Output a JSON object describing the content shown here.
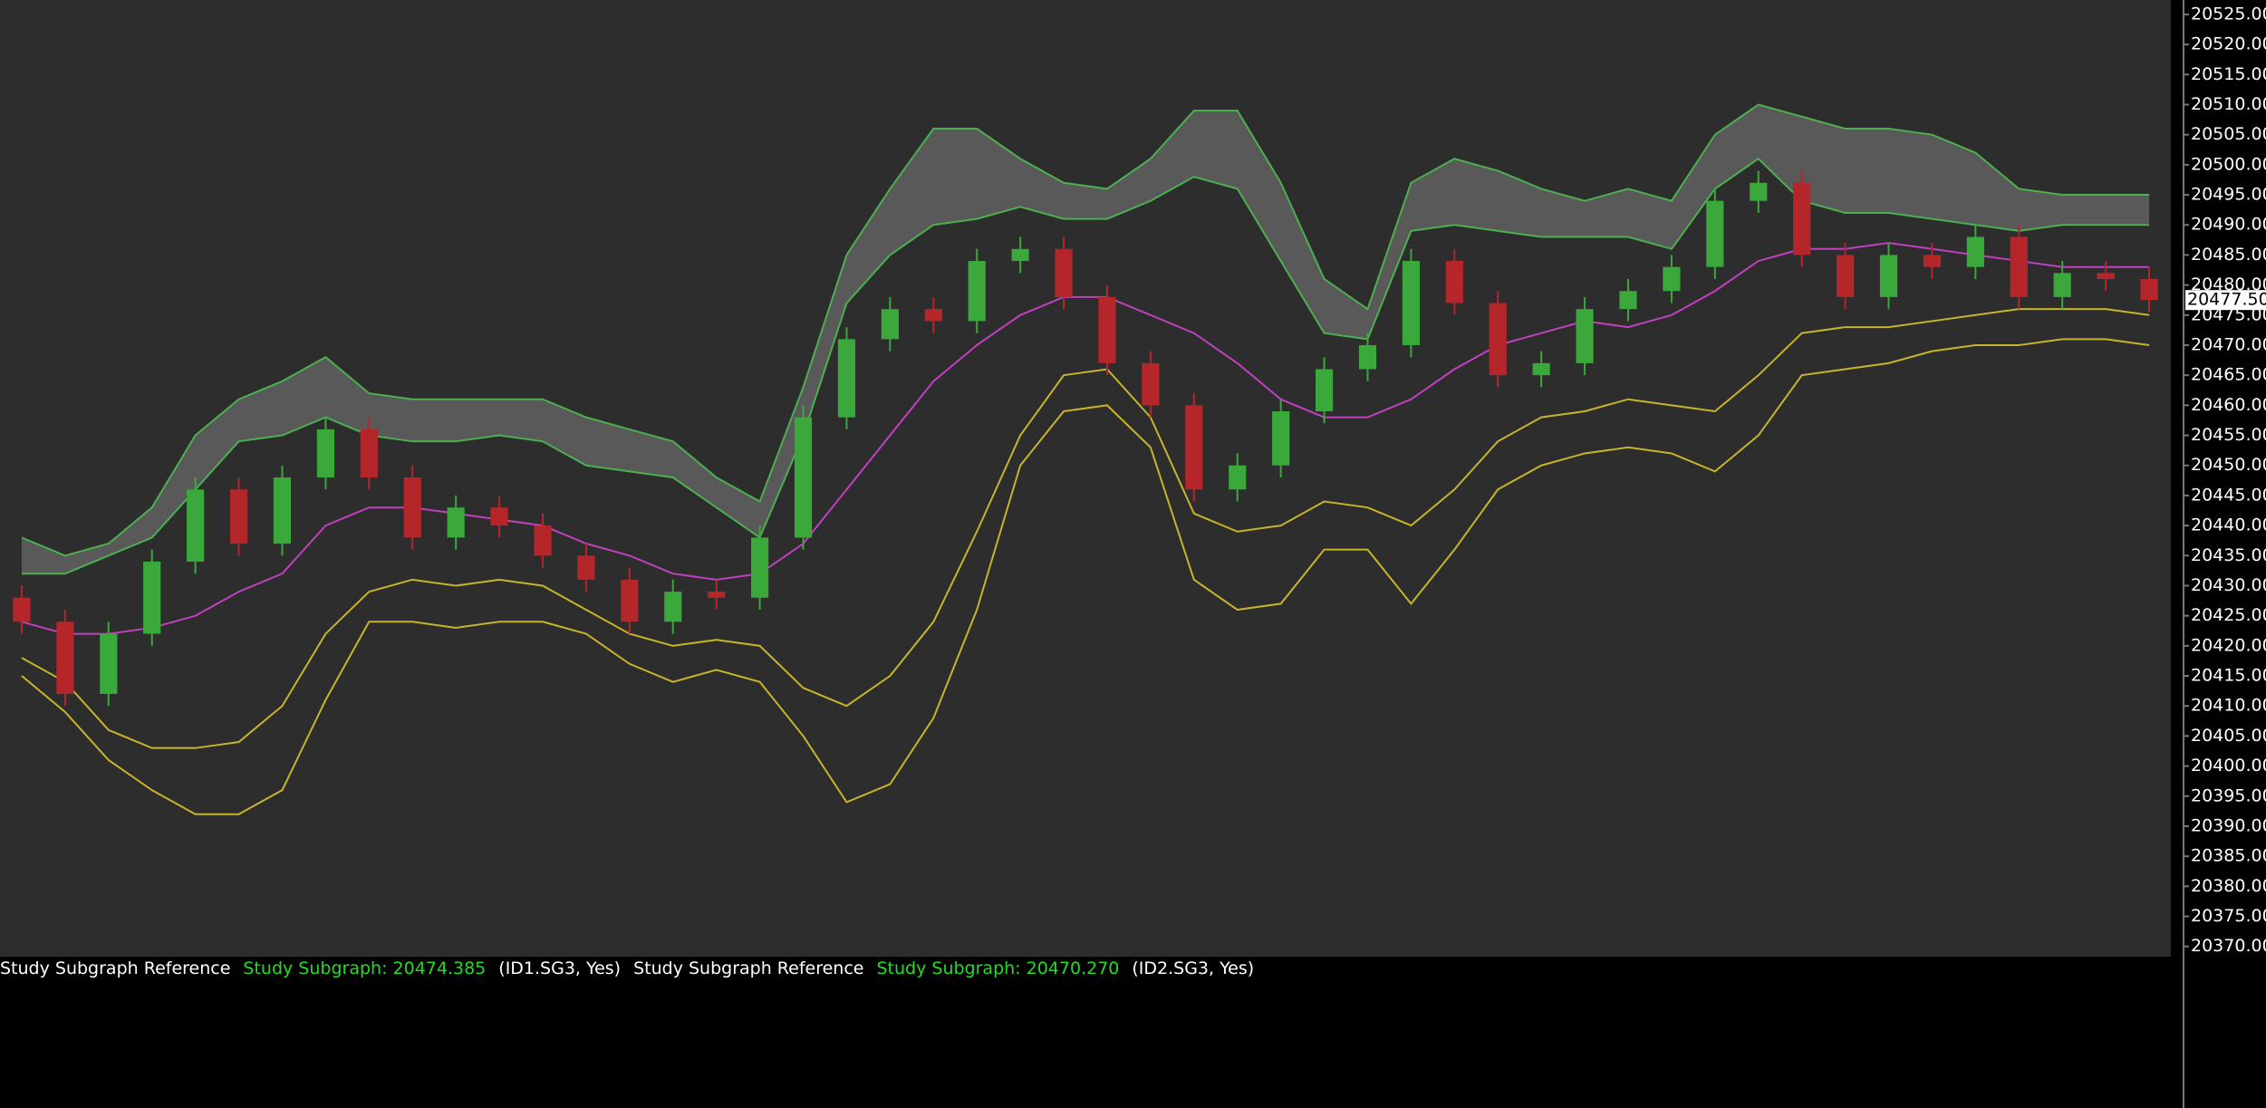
{
  "chart_data": {
    "type": "candlestick",
    "up_color": "#3aa83a",
    "down_color": "#b5262b",
    "plot_background": "#2d2d2d",
    "ylim": [
      20368.3,
      20527.4
    ],
    "yticks": [
      {
        "value": 20370,
        "label": "20370.00"
      },
      {
        "value": 20375,
        "label": "20375.00"
      },
      {
        "value": 20380,
        "label": "20380.00"
      },
      {
        "value": 20385,
        "label": "20385.00"
      },
      {
        "value": 20390,
        "label": "20390.00"
      },
      {
        "value": 20395,
        "label": "20395.00"
      },
      {
        "value": 20400,
        "label": "20400.00"
      },
      {
        "value": 20405,
        "label": "20405.00"
      },
      {
        "value": 20410,
        "label": "20410.00"
      },
      {
        "value": 20415,
        "label": "20415.00"
      },
      {
        "value": 20420,
        "label": "20420.00"
      },
      {
        "value": 20425,
        "label": "20425.00"
      },
      {
        "value": 20430,
        "label": "20430.00"
      },
      {
        "value": 20435,
        "label": "20435.00"
      },
      {
        "value": 20440,
        "label": "20440.00"
      },
      {
        "value": 20445,
        "label": "20445.00"
      },
      {
        "value": 20450,
        "label": "20450.00"
      },
      {
        "value": 20455,
        "label": "20455.00"
      },
      {
        "value": 20460,
        "label": "20460.00"
      },
      {
        "value": 20465,
        "label": "20465.00"
      },
      {
        "value": 20470,
        "label": "20470.00"
      },
      {
        "value": 20475,
        "label": "20475.00"
      },
      {
        "value": 20480,
        "label": "20480.00"
      },
      {
        "value": 20485,
        "label": "20485.00"
      },
      {
        "value": 20490,
        "label": "20490.00"
      },
      {
        "value": 20495,
        "label": "20495.00"
      },
      {
        "value": 20500,
        "label": "20500.00"
      },
      {
        "value": 20505,
        "label": "20505.00"
      },
      {
        "value": 20510,
        "label": "20510.00"
      },
      {
        "value": 20515,
        "label": "20515.00"
      },
      {
        "value": 20520,
        "label": "20520.00"
      },
      {
        "value": 20525,
        "label": "20525.00"
      }
    ],
    "last_price": {
      "value": 20477.5,
      "label": "20477.50"
    },
    "open": [
      20428,
      20424,
      20412,
      20422,
      20434,
      20446,
      20437,
      20448,
      20456,
      20448,
      20438,
      20443,
      20440,
      20435,
      20431,
      20424,
      20429,
      20428,
      20438,
      20458,
      20471,
      20476,
      20474,
      20484,
      20486,
      20478,
      20467,
      20460,
      20446,
      20450,
      20459,
      20466,
      20470,
      20484,
      20477,
      20465,
      20467,
      20476,
      20479,
      20483,
      20494,
      20497,
      20485,
      20478,
      20485,
      20483,
      20488,
      20478,
      20482,
      20481
    ],
    "high": [
      20430,
      20426,
      20424,
      20436,
      20448,
      20448,
      20450,
      20458,
      20458,
      20450,
      20445,
      20445,
      20442,
      20437,
      20433,
      20431,
      20431,
      20440,
      20460,
      20473,
      20478,
      20478,
      20486,
      20488,
      20488,
      20480,
      20469,
      20462,
      20452,
      20461,
      20468,
      20472,
      20486,
      20486,
      20479,
      20469,
      20478,
      20481,
      20485,
      20496,
      20499,
      20499,
      20487,
      20487,
      20487,
      20490,
      20490,
      20484,
      20484,
      20483
    ],
    "low": [
      20422,
      20410,
      20410,
      20420,
      20432,
      20435,
      20435,
      20446,
      20446,
      20436,
      20436,
      20438,
      20433,
      20429,
      20422,
      20422,
      20426,
      20426,
      20436,
      20456,
      20469,
      20472,
      20472,
      20482,
      20476,
      20465,
      20458,
      20444,
      20444,
      20448,
      20457,
      20464,
      20468,
      20475,
      20463,
      20463,
      20465,
      20474,
      20477,
      20481,
      20492,
      20483,
      20476,
      20476,
      20481,
      20481,
      20476,
      20476,
      20479,
      20475.5
    ],
    "close": [
      20424,
      20412,
      20422,
      20434,
      20446,
      20437,
      20448,
      20456,
      20448,
      20438,
      20443,
      20440,
      20435,
      20431,
      20424,
      20429,
      20428,
      20438,
      20458,
      20471,
      20476,
      20474,
      20484,
      20486,
      20478,
      20467,
      20460,
      20446,
      20450,
      20459,
      20466,
      20470,
      20484,
      20477,
      20465,
      20467,
      20476,
      20479,
      20483,
      20494,
      20497,
      20485,
      20478,
      20485,
      20483,
      20488,
      20478,
      20482,
      20481,
      20477.5
    ],
    "series": [
      {
        "color": "#4caf50",
        "fill": "#595959",
        "values": [
          20438,
          20435,
          20437,
          20443,
          20455,
          20461,
          20464,
          20468,
          20462,
          20461,
          20461,
          20461,
          20461,
          20458,
          20456,
          20454,
          20448,
          20444,
          20463,
          20485,
          20496,
          20506,
          20506,
          20501,
          20497,
          20496,
          20501,
          20509,
          20509,
          20497,
          20481,
          20476,
          20497,
          20501,
          20499,
          20496,
          20494,
          20496,
          20494,
          20505,
          20510,
          20508,
          20506,
          20506,
          20505,
          20502,
          20496,
          20495,
          20495,
          20495
        ]
      },
      {
        "color": "#4caf50",
        "values": [
          20432,
          20432,
          20435,
          20438,
          20446,
          20454,
          20455,
          20458,
          20455,
          20454,
          20454,
          20455,
          20454,
          20450,
          20449,
          20448,
          20443,
          20438,
          20455,
          20477,
          20485,
          20490,
          20491,
          20493,
          20491,
          20491,
          20494,
          20498,
          20496,
          20484,
          20472,
          20471,
          20489,
          20490,
          20489,
          20488,
          20488,
          20488,
          20486,
          20496,
          20501,
          20494,
          20492,
          20492,
          20491,
          20490,
          20489,
          20490,
          20490,
          20490
        ]
      },
      {
        "color": "#c040c0",
        "values": [
          20424,
          20422,
          20422,
          20423,
          20425,
          20429,
          20432,
          20440,
          20443,
          20443,
          20442,
          20441,
          20440,
          20437,
          20435,
          20432,
          20431,
          20432,
          20437,
          20446,
          20455,
          20464,
          20470,
          20475,
          20478,
          20478,
          20475,
          20472,
          20467,
          20461,
          20458,
          20458,
          20461,
          20466,
          20470,
          20472,
          20474,
          20473,
          20475,
          20479,
          20484,
          20486,
          20486,
          20487,
          20486,
          20485,
          20484,
          20483,
          20483,
          20483
        ]
      },
      {
        "color": "#c8b42a",
        "values": [
          20418,
          20414,
          20406,
          20403,
          20403,
          20404,
          20410,
          20422,
          20429,
          20431,
          20430,
          20431,
          20430,
          20426,
          20422,
          20420,
          20421,
          20420,
          20413,
          20410,
          20415,
          20424,
          20439,
          20455,
          20465,
          20466,
          20458,
          20442,
          20439,
          20440,
          20444,
          20443,
          20440,
          20446,
          20454,
          20458,
          20459,
          20461,
          20460,
          20459,
          20465,
          20472,
          20473,
          20473,
          20474,
          20475,
          20476,
          20476,
          20476,
          20475
        ]
      },
      {
        "color": "#c8b42a",
        "values": [
          20415,
          20409,
          20401,
          20396,
          20392,
          20392,
          20396,
          20411,
          20424,
          20424,
          20423,
          20424,
          20424,
          20422,
          20417,
          20414,
          20416,
          20414,
          20405,
          20394,
          20397,
          20408,
          20426,
          20450,
          20459,
          20460,
          20453,
          20431,
          20426,
          20427,
          20436,
          20436,
          20427,
          20436,
          20446,
          20450,
          20452,
          20453,
          20452,
          20449,
          20455,
          20465,
          20466,
          20467,
          20469,
          20470,
          20470,
          20471,
          20471,
          20470
        ]
      }
    ],
    "status": [
      {
        "text": "Study Subgraph Reference",
        "color": "#ffffff"
      },
      {
        "text": "Study Subgraph: 20474.385",
        "color": "#22dd22"
      },
      {
        "text": "(ID1.SG3, Yes)",
        "color": "#ffffff"
      },
      {
        "text": "Study Subgraph Reference",
        "color": "#ffffff"
      },
      {
        "text": "Study Subgraph: 20470.270",
        "color": "#22dd22"
      },
      {
        "text": "(ID2.SG3, Yes)",
        "color": "#ffffff"
      }
    ]
  }
}
